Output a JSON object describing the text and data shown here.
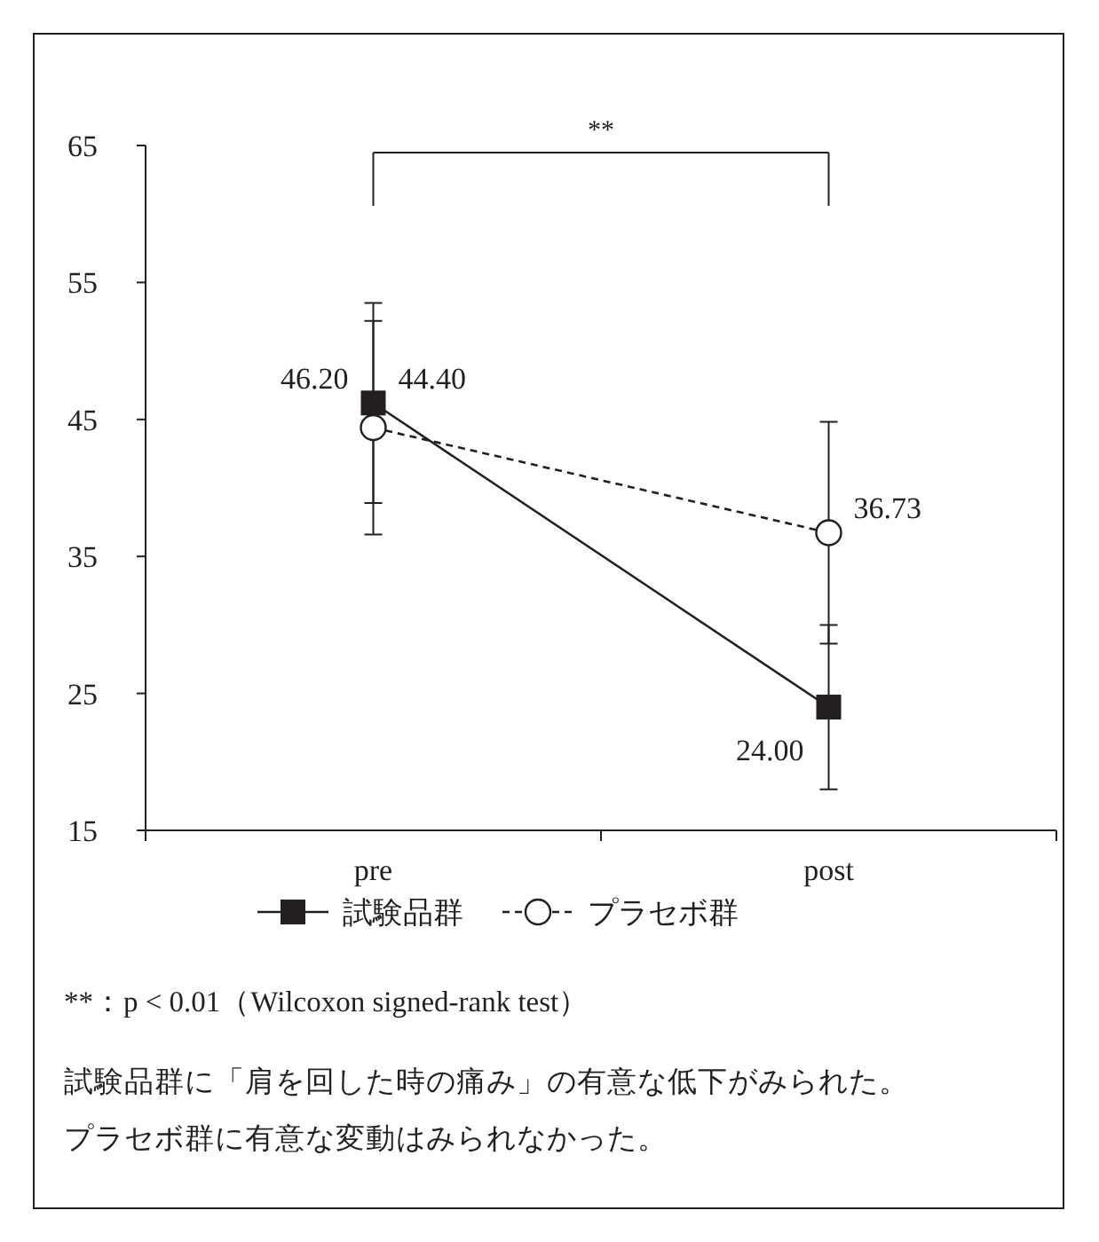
{
  "chart_data": {
    "type": "line",
    "categories": [
      "pre",
      "post"
    ],
    "series": [
      {
        "name": "試験品群",
        "color": "#231f20",
        "marker": "square",
        "line_style": "solid",
        "values": [
          46.2,
          24.0
        ],
        "value_labels": [
          "46.20",
          "24.00"
        ],
        "errors": [
          7.3,
          6.0
        ]
      },
      {
        "name": "プラセボ群",
        "color": "#231f20",
        "marker": "circle",
        "line_style": "dashed",
        "values": [
          44.4,
          36.73
        ],
        "value_labels": [
          "44.40",
          "36.73"
        ],
        "errors": [
          7.8,
          8.1
        ]
      }
    ],
    "ylim": [
      15,
      65
    ],
    "yticks": [
      15,
      25,
      35,
      45,
      55,
      65
    ],
    "grid": false,
    "legend": "bottom",
    "annotations": [
      "**",
      "**：p < 0.01（Wilcoxon signed-rank test）",
      "試験品群に「肩を回した時の痛み」の有意な低下がみられた。",
      "プラセボ群に有意な変動はみられなかった。"
    ]
  }
}
